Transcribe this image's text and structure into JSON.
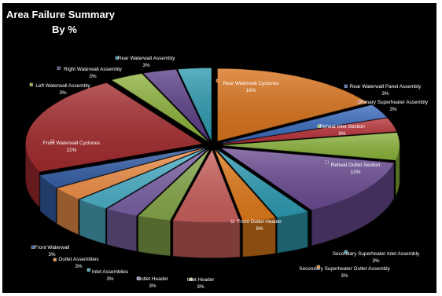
{
  "chart_data": {
    "type": "pie",
    "title": "Area Failure Summary",
    "subtitle": "By %",
    "legend": "none",
    "slices": [
      {
        "label": "Rear Waterwall Cyclones",
        "value": 16,
        "percent_label": "16%",
        "color": "#d9731c"
      },
      {
        "label": "Rear Waterwall Panel Assembly",
        "value": 3,
        "percent_label": "3%",
        "color": "#3a6bbd"
      },
      {
        "label": "Primary Superheater Assembly",
        "value": 3,
        "percent_label": "3%",
        "color": "#b8333a"
      },
      {
        "label": "Reheat Inlet Section",
        "value": 6,
        "percent_label": "6%",
        "color": "#8bb33b"
      },
      {
        "label": "Reheat Outlet Section",
        "value": 13,
        "percent_label": "13%",
        "color": "#6b4c93"
      },
      {
        "label": "Secondary Superheater Inlet Assembly",
        "value": 3,
        "percent_label": "3%",
        "color": "#2f9cb3"
      },
      {
        "label": "Secondary Superheater Outlet Assembly",
        "value": 3,
        "percent_label": "3%",
        "color": "#e07a1a"
      },
      {
        "label": "Front Outlet Header",
        "value": 6,
        "percent_label": "6%",
        "color": "#c9605c"
      },
      {
        "label": "Inlet Header",
        "value": 3,
        "percent_label": "3%",
        "color": "#86a84a"
      },
      {
        "label": "Outlet Header",
        "value": 3,
        "percent_label": "3%",
        "color": "#7b62a6"
      },
      {
        "label": "Inlet Assemblies",
        "value": 3,
        "percent_label": "3%",
        "color": "#4eb1c9"
      },
      {
        "label": "Outlet Assemblies",
        "value": 3,
        "percent_label": "3%",
        "color": "#f0914a"
      },
      {
        "label": "Front Waterwall",
        "value": 3,
        "percent_label": "3%",
        "color": "#3560a8"
      },
      {
        "label": "Front Waterwall Cyclones",
        "value": 22,
        "percent_label": "22%",
        "color": "#a32b2e"
      },
      {
        "label": "Left Waterwall Assembly",
        "value": 3,
        "percent_label": "3%",
        "color": "#8db23c"
      },
      {
        "label": "Right Waterwall Assembly",
        "value": 3,
        "percent_label": "3%",
        "color": "#5c3f87"
      },
      {
        "label": "Rear Waterwall Assembly",
        "value": 3,
        "percent_label": "3%",
        "color": "#2e9ab0"
      }
    ]
  }
}
